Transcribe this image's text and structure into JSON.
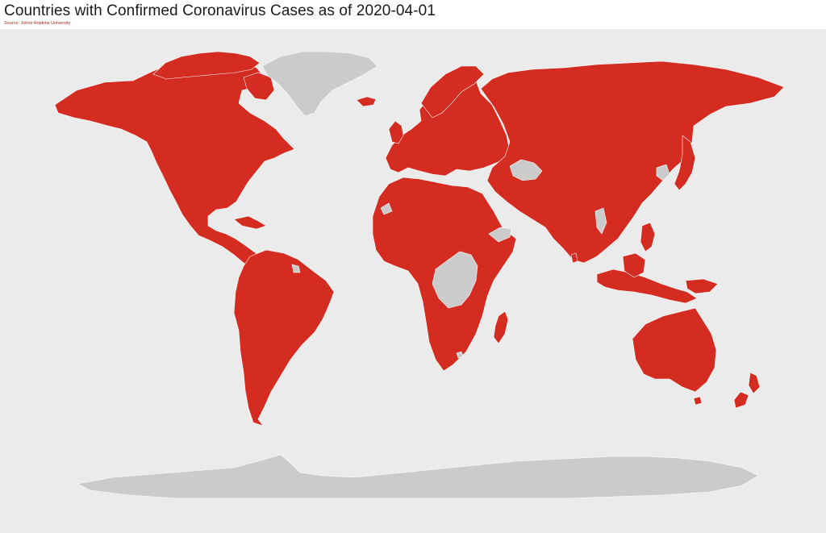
{
  "title": "Countries with Confirmed Coronavirus Cases as of 2020-04-01",
  "subtitle": "Source: Johns Hopkins University",
  "legend": {
    "confirmed_color": "#d42c21",
    "no_cases_color": "#cbcbcb",
    "ocean_color": "#ebebeb"
  },
  "chart_data": {
    "type": "map",
    "title": "Countries with Confirmed Coronavirus Cases as of 2020-04-01",
    "subtitle": "Source: Johns Hopkins University",
    "legend": "none",
    "categories": [
      "confirmed",
      "none"
    ],
    "regions": [
      {
        "name": "North America",
        "status": "confirmed"
      },
      {
        "name": "Greenland",
        "status": "none"
      },
      {
        "name": "Iceland",
        "status": "confirmed"
      },
      {
        "name": "South America",
        "status": "confirmed"
      },
      {
        "name": "Europe",
        "status": "confirmed"
      },
      {
        "name": "Africa",
        "status": "confirmed"
      },
      {
        "name": "Central Africa",
        "status": "none"
      },
      {
        "name": "Madagascar",
        "status": "confirmed"
      },
      {
        "name": "Russia and Asia",
        "status": "confirmed"
      },
      {
        "name": "Turkmenistan",
        "status": "none"
      },
      {
        "name": "Yemen",
        "status": "none"
      },
      {
        "name": "Western Sahara",
        "status": "none"
      },
      {
        "name": "Lesotho",
        "status": "none"
      },
      {
        "name": "Japan",
        "status": "confirmed"
      },
      {
        "name": "North Korea",
        "status": "none"
      },
      {
        "name": "Philippines",
        "status": "confirmed"
      },
      {
        "name": "Indonesia",
        "status": "confirmed"
      },
      {
        "name": "Papua New Guinea",
        "status": "confirmed"
      },
      {
        "name": "Australia",
        "status": "confirmed"
      },
      {
        "name": "New Zealand",
        "status": "confirmed"
      },
      {
        "name": "Antarctica",
        "status": "none"
      }
    ]
  }
}
